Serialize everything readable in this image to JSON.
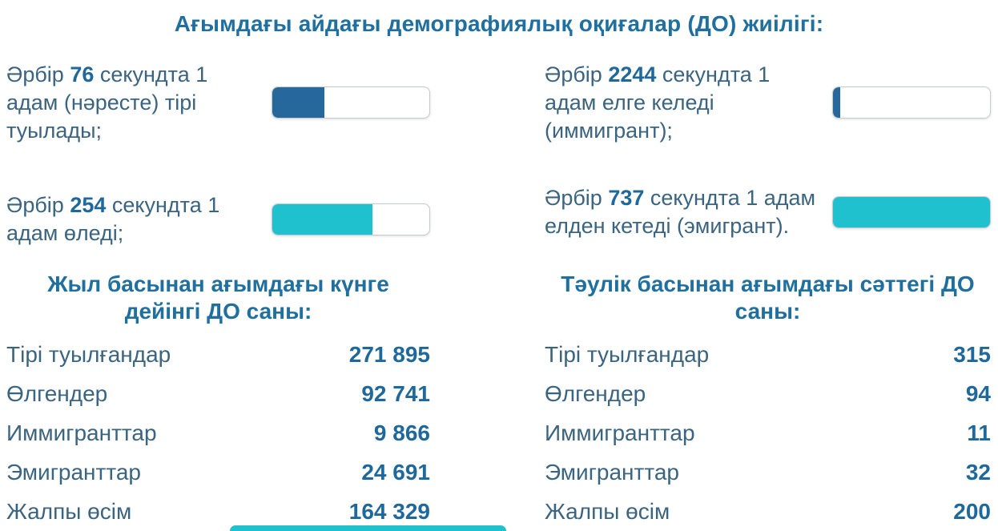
{
  "page": {
    "title": "Ағымдағы айдағы демографиялық оқиғалар (ДО) жиілігі:"
  },
  "colors": {
    "heading": "#1f6f9f",
    "text": "#3a6480",
    "bar_blue": "#26689b",
    "bar_cyan": "#1fc1cf"
  },
  "frequency": {
    "items": [
      {
        "id": "births",
        "prefix": "Әрбір ",
        "value": "76",
        "suffix": " секундта 1 адам (нәресте) тірі туылады;",
        "percent": 33,
        "color": "#26689b"
      },
      {
        "id": "deaths",
        "prefix": "Әрбір ",
        "value": "254",
        "suffix": " секундта 1 адам өледі;",
        "percent": 64,
        "color": "#1fc1cf"
      },
      {
        "id": "immigrants",
        "prefix": "Әрбір ",
        "value": "2244",
        "suffix": " секундта 1 адам елге келеді (иммигрант);",
        "percent": 4.5,
        "color": "#26689b"
      },
      {
        "id": "emigrants",
        "prefix": "Әрбір ",
        "value": "737",
        "suffix": " секундта 1 адам елден кетеді (эмигрант).",
        "percent": 100,
        "color": "#1fc1cf"
      }
    ]
  },
  "tables": [
    {
      "title": "Жыл басынан ағымдағы күнге дейінгі ДО саны:",
      "rows": [
        {
          "label": "Тірі туылғандар",
          "value": "271 895"
        },
        {
          "label": "Өлгендер",
          "value": "92 741"
        },
        {
          "label": "Иммигранттар",
          "value": "9 866"
        },
        {
          "label": "Эмигранттар",
          "value": "24 691"
        },
        {
          "label": "Жалпы өсім",
          "value": "164 329"
        }
      ]
    },
    {
      "title": "Тәулік басынан ағымдағы сәттегі ДО саны:",
      "rows": [
        {
          "label": "Тірі туылғандар",
          "value": "315"
        },
        {
          "label": "Өлгендер",
          "value": "94"
        },
        {
          "label": "Иммигранттар",
          "value": "11"
        },
        {
          "label": "Эмигранттар",
          "value": "32"
        },
        {
          "label": "Жалпы өсім",
          "value": "200"
        }
      ]
    }
  ],
  "partial_bar": {
    "color": "#1fc1cf"
  }
}
